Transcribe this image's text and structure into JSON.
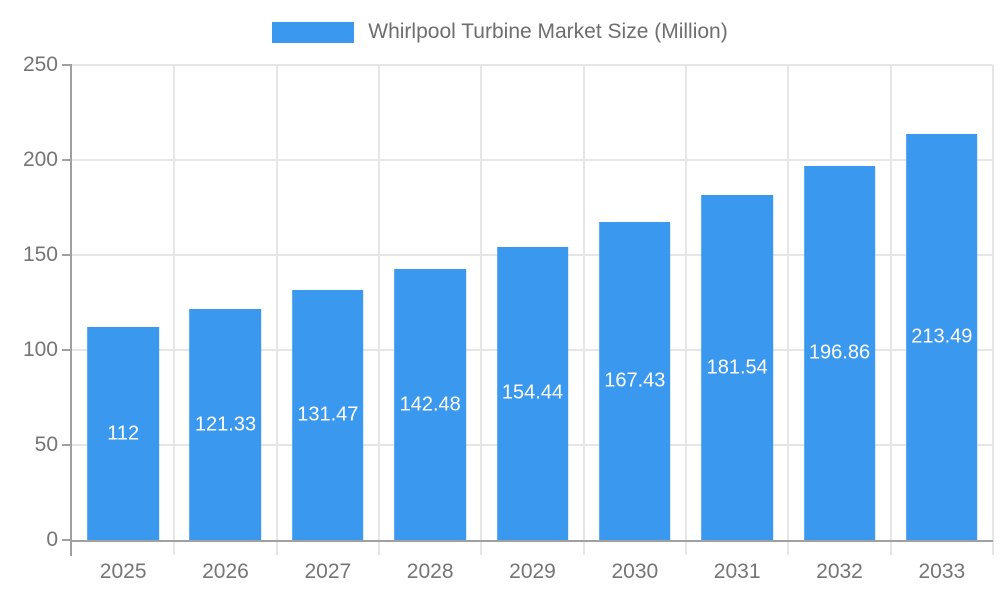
{
  "chart_data": {
    "type": "bar",
    "title": "Whirlpool Turbine Market Size (Million)",
    "series_name": "Whirlpool Turbine Market Size (Million)",
    "categories": [
      "2025",
      "2026",
      "2027",
      "2028",
      "2029",
      "2030",
      "2031",
      "2032",
      "2033"
    ],
    "values": [
      112,
      121.33,
      131.47,
      142.48,
      154.44,
      167.43,
      181.54,
      196.86,
      213.49
    ],
    "value_labels": [
      "112",
      "121.33",
      "131.47",
      "142.48",
      "154.44",
      "167.43",
      "181.54",
      "196.86",
      "213.49"
    ],
    "xlabel": "",
    "ylabel": "",
    "ylim": [
      0,
      250
    ],
    "ytick_step": 50,
    "yticks": [
      "0",
      "50",
      "100",
      "150",
      "200",
      "250"
    ],
    "grid": true,
    "legend_position": "top-center",
    "colors": {
      "bar": "#3A99EE",
      "grid": "#E6E6E6",
      "axis": "#A0A0A0",
      "tick_label": "#757575",
      "legend_text": "#6E6E6E",
      "data_label": "#FFFFFF",
      "background": "#FFFFFF"
    }
  }
}
